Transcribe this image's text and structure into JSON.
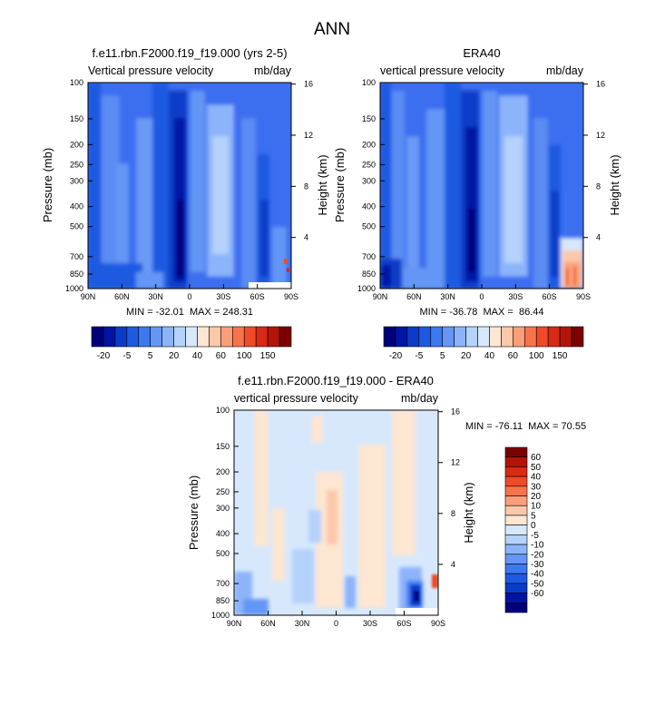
{
  "page_title": "ANN",
  "colors": {
    "main_bar": [
      "#00007d",
      "#0014a5",
      "#0a3cc8",
      "#1e5ae1",
      "#3c78f0",
      "#6496f5",
      "#8cb4fa",
      "#b4d2fa",
      "#d7e8fc",
      "#fde6d2",
      "#fcc8aa",
      "#fa9f78",
      "#f8734a",
      "#f04a28",
      "#d82a14",
      "#b41408",
      "#7d0000"
    ],
    "diff_bar": [
      "#00007d",
      "#0014a5",
      "#0a3cc8",
      "#1e5ae1",
      "#3c78f0",
      "#6496f5",
      "#8cb4fa",
      "#b4d2fa",
      "#d7e8fc",
      "#fde6d2",
      "#fcc8aa",
      "#fa9f78",
      "#f8734a",
      "#f04a28",
      "#d82a14",
      "#b41408",
      "#7d0000"
    ]
  },
  "chart_data": [
    {
      "type": "heatmap",
      "title": "f.e11.rbn.F2000.f19_f19.000 (yrs 2-5)",
      "left_subtitle": "Vertical pressure velocity",
      "right_subtitle": "mb/day",
      "ylabel": "Pressure (mb)",
      "y2label": "Height (km)",
      "x_ticks": [
        "90N",
        "60N",
        "30N",
        "0",
        "30S",
        "60S",
        "90S"
      ],
      "y_ticks": [
        "100",
        "150",
        "200",
        "250",
        "300",
        "400",
        "500",
        "700",
        "850",
        "1000"
      ],
      "y2_ticks": [
        "16",
        "12",
        "8",
        "4"
      ],
      "min_max_text": "MIN = -32.01  MAX = 248.31",
      "colorbar_labels": [
        "-20",
        "-5",
        "5",
        "20",
        "40",
        "60",
        "100",
        "150"
      ]
    },
    {
      "type": "heatmap",
      "title": "ERA40",
      "left_subtitle": "vertical pressure velocity",
      "right_subtitle": "mb/day",
      "ylabel": "Pressure (mb)",
      "y2label": "Height (km)",
      "x_ticks": [
        "90N",
        "60N",
        "30N",
        "0",
        "30S",
        "60S",
        "90S"
      ],
      "y_ticks": [
        "100",
        "150",
        "200",
        "250",
        "300",
        "400",
        "500",
        "700",
        "850",
        "1000"
      ],
      "y2_ticks": [
        "16",
        "12",
        "8",
        "4"
      ],
      "min_max_text": "MIN = -36.78  MAX =  86.44",
      "colorbar_labels": [
        "-20",
        "-5",
        "5",
        "20",
        "40",
        "60",
        "100",
        "150"
      ]
    },
    {
      "type": "heatmap",
      "title": "f.e11.rbn.F2000.f19_f19.000 - ERA40",
      "left_subtitle": "vertical pressure velocity",
      "right_subtitle": "mb/day",
      "ylabel": "Pressure (mb)",
      "y2label": "Height (km)",
      "x_ticks": [
        "90N",
        "60N",
        "30N",
        "0",
        "30S",
        "60S",
        "90S"
      ],
      "y_ticks": [
        "100",
        "150",
        "200",
        "250",
        "300",
        "400",
        "500",
        "700",
        "850",
        "1000"
      ],
      "y2_ticks": [
        "16",
        "12",
        "8",
        "4"
      ],
      "min_max_text": "MIN = -76.11  MAX = 70.55",
      "colorbar_labels": [
        "60",
        "50",
        "40",
        "30",
        "20",
        "10",
        "5",
        "0",
        "-5",
        "-10",
        "-20",
        "-30",
        "-40",
        "-50",
        "-60"
      ]
    }
  ]
}
